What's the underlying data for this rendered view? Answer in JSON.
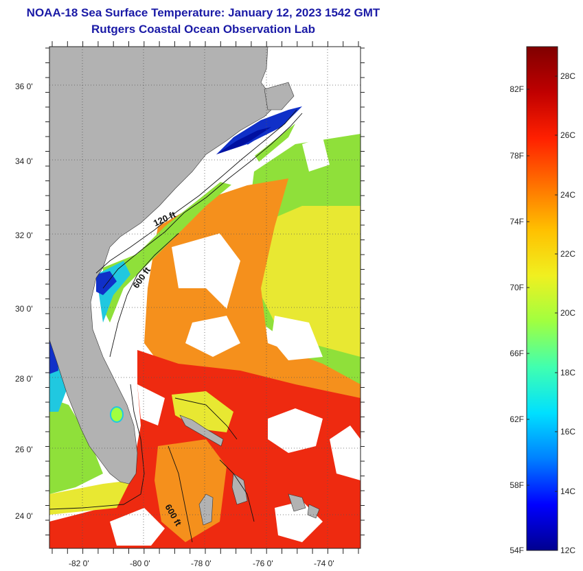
{
  "title": {
    "line1": "NOAA-18 Sea Surface Temperature:  January 12, 2023 1542 GMT",
    "line2": "Rutgers Coastal Ocean Observation Lab"
  },
  "map": {
    "lat_ticks": [
      "36 0'",
      "34 0'",
      "32 0'",
      "30 0'",
      "28 0'",
      "26 0'",
      "24 0'"
    ],
    "lon_ticks": [
      "-82 0'",
      "-80 0'",
      "-78 0'",
      "-76 0'",
      "-74 0'"
    ],
    "contour_labels": [
      "120 ft",
      "600 ft",
      "600 ft"
    ],
    "colors": {
      "land": "#b2b2b2",
      "cloud": "#ffffff",
      "warm": "#ee2a10",
      "orange": "#f5901c",
      "yellow": "#e8e832",
      "green": "#8fe03a",
      "cyan": "#20c8e0",
      "blue": "#1030c8",
      "navy": "#0010a0"
    }
  },
  "colorbar": {
    "fahrenheit_labels": [
      "82F",
      "78F",
      "74F",
      "70F",
      "66F",
      "62F",
      "58F",
      "54F"
    ],
    "celsius_labels": [
      "28C",
      "26C",
      "24C",
      "22C",
      "20C",
      "18C",
      "16C",
      "14C",
      "12C"
    ],
    "stops": [
      "#00008f",
      "#0000ff",
      "#0080ff",
      "#00e0ff",
      "#40ffb0",
      "#a0ff40",
      "#f0f020",
      "#ffc000",
      "#ff7000",
      "#ff2000",
      "#c00000",
      "#800000"
    ]
  }
}
